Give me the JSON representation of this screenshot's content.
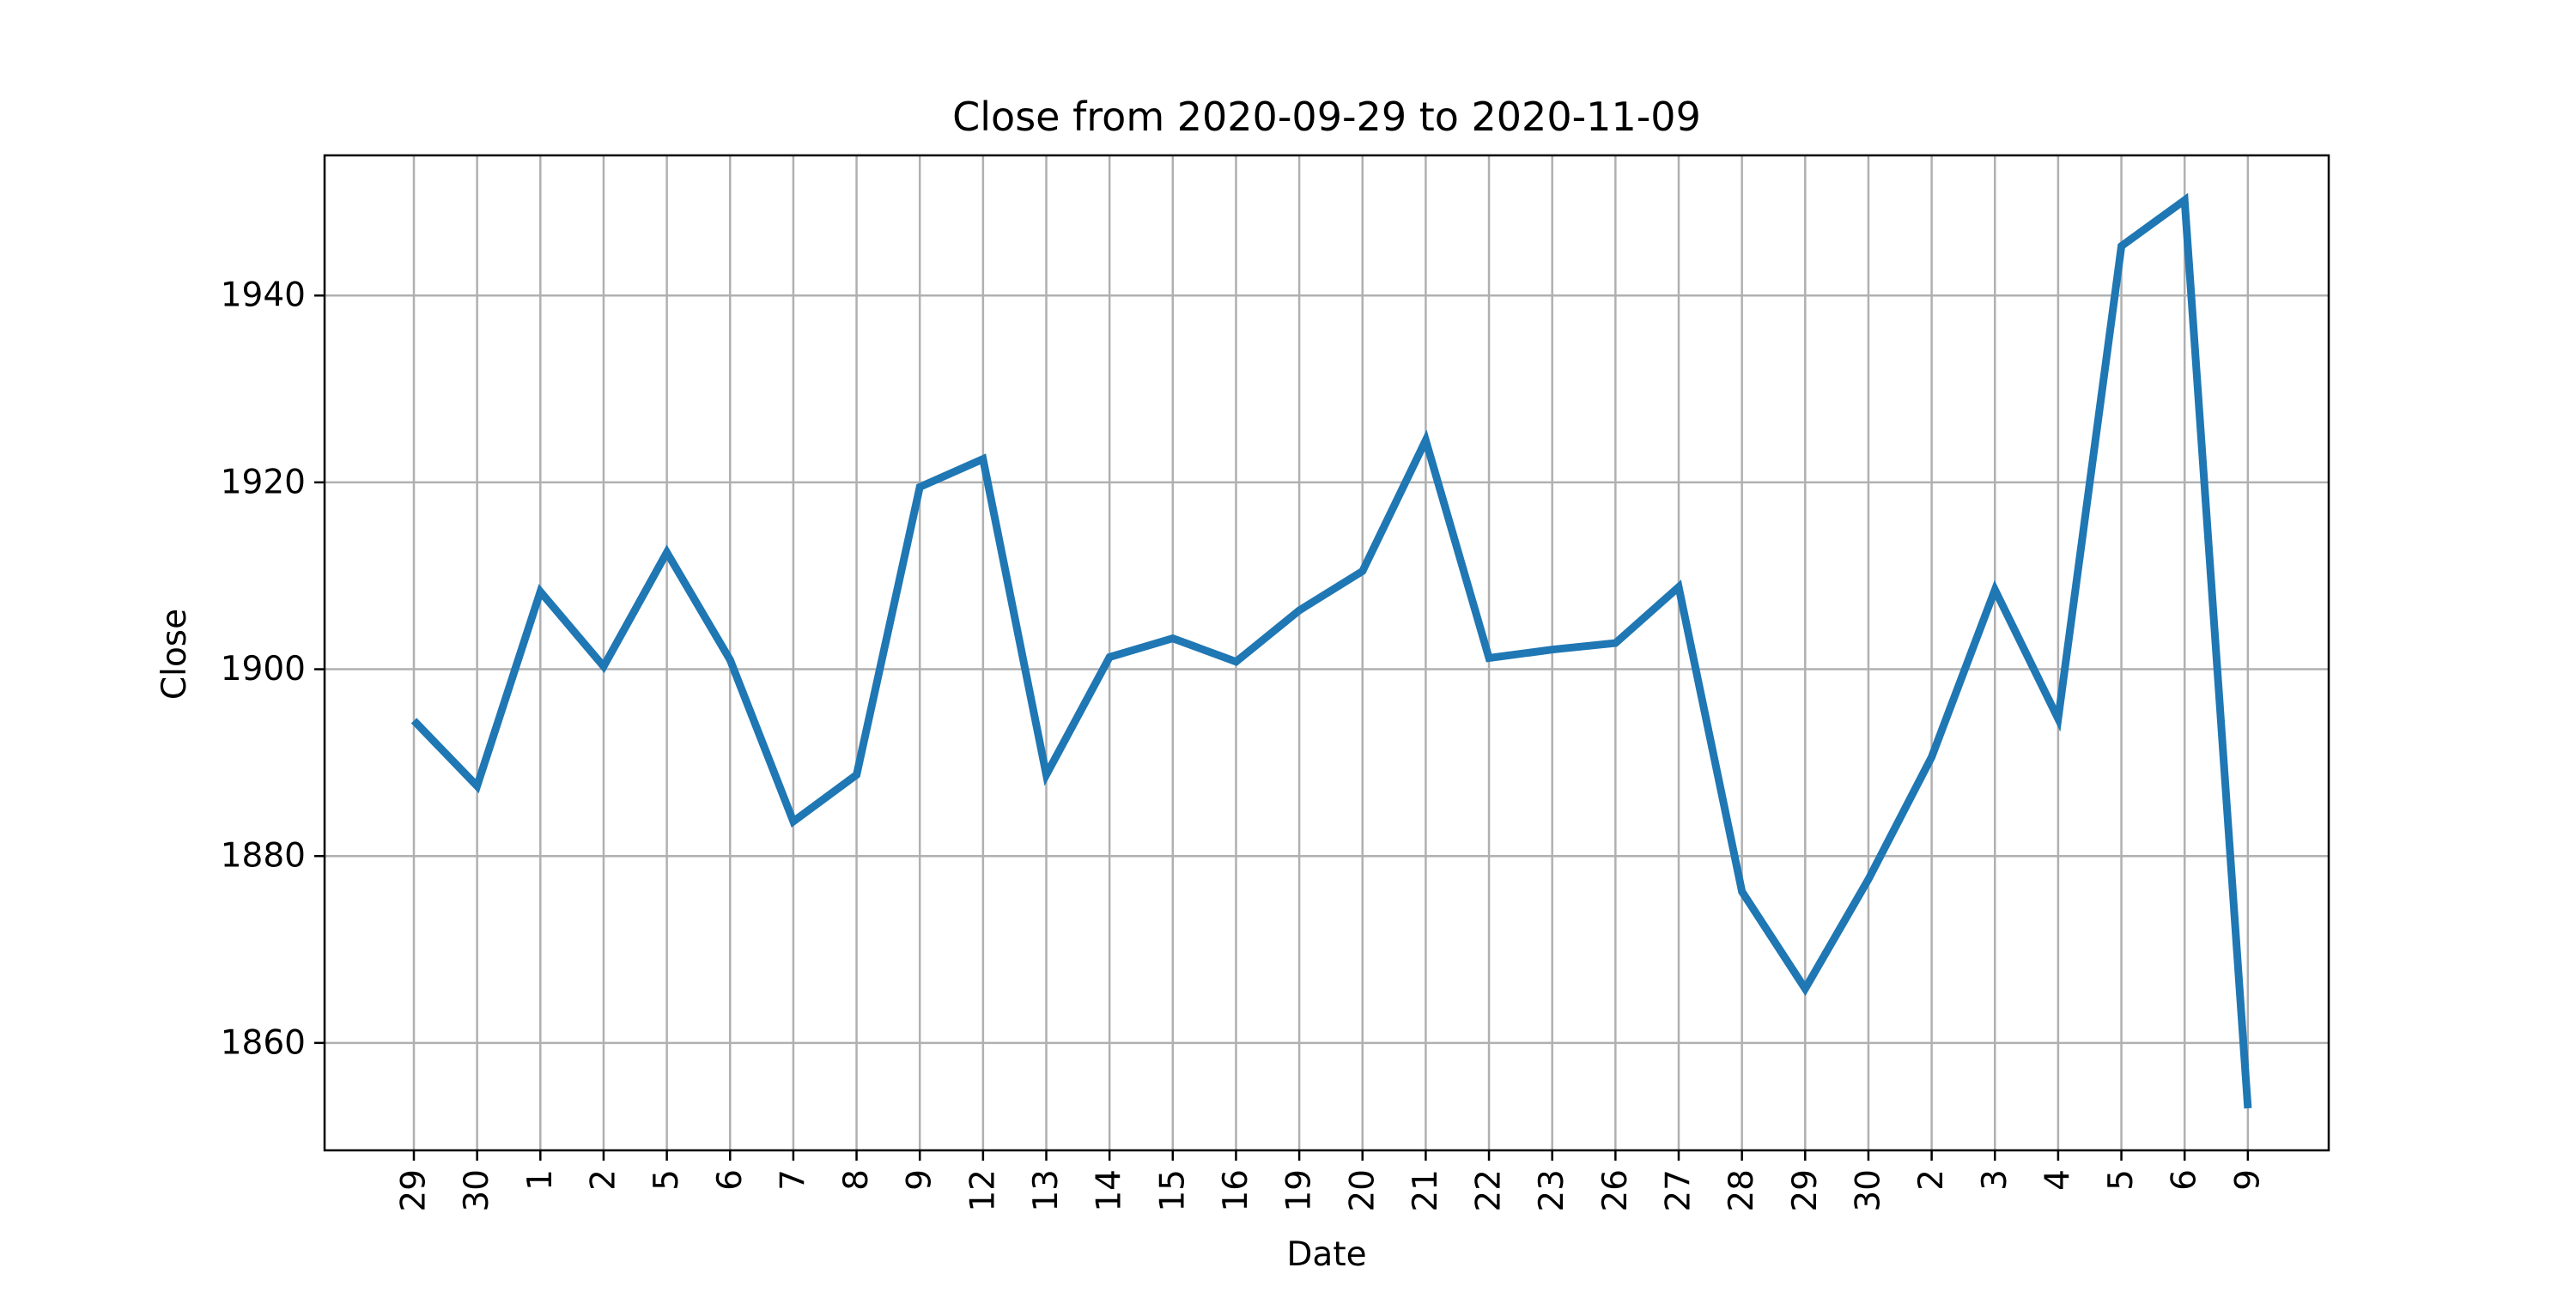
{
  "chart_data": {
    "type": "line",
    "title": "Close from 2020-09-29 to 2020-11-09",
    "xlabel": "Date",
    "ylabel": "Close",
    "categories": [
      "29",
      "30",
      "1",
      "2",
      "5",
      "6",
      "7",
      "8",
      "9",
      "12",
      "13",
      "14",
      "15",
      "16",
      "19",
      "20",
      "21",
      "22",
      "23",
      "26",
      "27",
      "28",
      "29",
      "30",
      "2",
      "3",
      "4",
      "5",
      "6",
      "9"
    ],
    "dates": [
      "2020-09-29",
      "2020-09-30",
      "2020-10-01",
      "2020-10-02",
      "2020-10-05",
      "2020-10-06",
      "2020-10-07",
      "2020-10-08",
      "2020-10-09",
      "2020-10-12",
      "2020-10-13",
      "2020-10-14",
      "2020-10-15",
      "2020-10-16",
      "2020-10-19",
      "2020-10-20",
      "2020-10-21",
      "2020-10-22",
      "2020-10-23",
      "2020-10-26",
      "2020-10-27",
      "2020-10-28",
      "2020-10-29",
      "2020-10-30",
      "2020-11-02",
      "2020-11-03",
      "2020-11-04",
      "2020-11-05",
      "2020-11-06",
      "2020-11-09"
    ],
    "series": [
      {
        "values": [
          1894.5,
          1887.5,
          1908.3,
          1900.3,
          1912.5,
          1901.0,
          1883.7,
          1888.7,
          1919.5,
          1922.5,
          1888.7,
          1901.3,
          1903.3,
          1900.8,
          1906.3,
          1910.5,
          1924.5,
          1901.2,
          1902.1,
          1902.8,
          1908.8,
          1876.2,
          1865.8,
          1877.5,
          1890.6,
          1908.5,
          1894.7,
          1945.3,
          1950.2,
          1853.0
        ],
        "color": "#1f77b4"
      }
    ],
    "yticks": [
      1860,
      1880,
      1900,
      1920,
      1940
    ],
    "ytick_labels": [
      "1860",
      "1880",
      "1900",
      "1920",
      "1940"
    ],
    "ylim": [
      1848.5,
      1955.0
    ],
    "grid": true,
    "legend": "none"
  }
}
